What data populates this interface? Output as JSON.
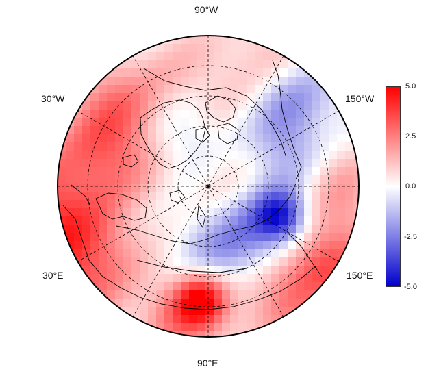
{
  "map": {
    "projection": "north polar stereographic",
    "longitude_labels": {
      "top": "90°W",
      "upper_left": "30°W",
      "upper_right": "150°W",
      "lower_left": "30°E",
      "lower_right": "150°E",
      "bottom": "90°E"
    },
    "colorbar": {
      "ticks": [
        "5.0",
        "2.5",
        "0.0",
        "-2.5",
        "-5.0"
      ],
      "min": -5.0,
      "max": 5.0,
      "colors": {
        "high": "#ff0000",
        "mid": "#ffffff",
        "low": "#0000cc"
      }
    },
    "graticule": {
      "style": "dashed",
      "lat_circles": 4,
      "meridian_spacing_deg": 30
    }
  }
}
